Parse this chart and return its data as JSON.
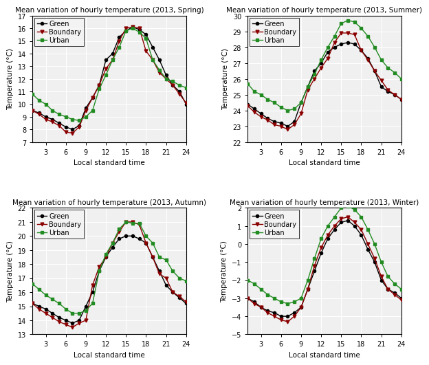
{
  "x": [
    1,
    2,
    3,
    4,
    5,
    6,
    7,
    8,
    9,
    10,
    11,
    12,
    13,
    14,
    15,
    16,
    17,
    18,
    19,
    20,
    21,
    22,
    23,
    24
  ],
  "spring": {
    "green": [
      9.5,
      9.3,
      9.0,
      8.8,
      8.5,
      8.2,
      8.0,
      8.3,
      9.7,
      10.5,
      11.5,
      13.5,
      14.0,
      15.3,
      15.8,
      16.1,
      15.9,
      15.5,
      14.5,
      13.5,
      12.3,
      11.5,
      11.0,
      10.0
    ],
    "boundary": [
      9.5,
      9.2,
      8.8,
      8.6,
      8.3,
      7.8,
      7.7,
      8.2,
      9.5,
      10.5,
      11.5,
      12.8,
      13.5,
      15.0,
      16.0,
      16.1,
      16.0,
      14.2,
      13.5,
      12.5,
      12.0,
      11.5,
      10.8,
      10.1
    ],
    "urban": [
      10.8,
      10.3,
      10.0,
      9.5,
      9.2,
      9.0,
      8.8,
      8.7,
      9.0,
      9.5,
      11.2,
      12.3,
      13.5,
      14.5,
      15.8,
      16.0,
      15.7,
      15.2,
      13.5,
      12.7,
      12.0,
      11.8,
      11.5,
      11.3
    ],
    "ylim": [
      7,
      17
    ],
    "yticks": [
      7,
      8,
      9,
      10,
      11,
      12,
      13,
      14,
      15,
      16,
      17
    ],
    "title": "Mean variation of hourly temperature (2013, Spring)"
  },
  "summer": {
    "green": [
      24.4,
      24.1,
      23.8,
      23.5,
      23.3,
      23.2,
      23.0,
      23.3,
      24.5,
      25.5,
      26.5,
      27.0,
      27.7,
      28.0,
      28.2,
      28.3,
      28.2,
      27.8,
      27.3,
      26.5,
      25.5,
      25.2,
      25.0,
      24.7
    ],
    "boundary": [
      24.3,
      23.9,
      23.6,
      23.4,
      23.1,
      23.0,
      22.8,
      23.1,
      23.8,
      25.3,
      26.0,
      26.7,
      27.3,
      28.3,
      28.9,
      28.9,
      28.8,
      27.8,
      27.2,
      26.5,
      25.9,
      25.3,
      25.0,
      24.7
    ],
    "urban": [
      25.7,
      25.2,
      25.0,
      24.7,
      24.5,
      24.2,
      24.0,
      24.1,
      24.5,
      25.5,
      26.3,
      27.2,
      28.0,
      28.7,
      29.5,
      29.7,
      29.6,
      29.2,
      28.7,
      28.0,
      27.2,
      26.7,
      26.4,
      26.0
    ],
    "ylim": [
      22,
      30
    ],
    "yticks": [
      22,
      23,
      24,
      25,
      26,
      27,
      28,
      29,
      30
    ],
    "title": "Mean variation of hourly temperature (2013, Summer)"
  },
  "autumn": {
    "green": [
      15.2,
      15.0,
      14.8,
      14.5,
      14.2,
      14.0,
      13.8,
      14.0,
      15.0,
      16.0,
      17.5,
      18.5,
      19.2,
      19.8,
      20.0,
      20.0,
      19.8,
      19.5,
      18.5,
      17.5,
      16.5,
      16.0,
      15.6,
      15.2
    ],
    "boundary": [
      15.2,
      14.8,
      14.5,
      14.2,
      13.9,
      13.7,
      13.5,
      13.8,
      14.0,
      16.5,
      17.8,
      18.5,
      19.5,
      20.3,
      21.0,
      21.0,
      20.8,
      19.5,
      18.5,
      17.3,
      17.0,
      16.0,
      15.7,
      15.3
    ],
    "urban": [
      16.6,
      16.2,
      15.8,
      15.5,
      15.2,
      14.8,
      14.5,
      14.5,
      14.7,
      15.2,
      17.5,
      18.7,
      19.5,
      20.5,
      21.0,
      20.9,
      20.9,
      20.0,
      19.5,
      18.5,
      18.3,
      17.5,
      17.0,
      16.8
    ],
    "ylim": [
      13,
      22
    ],
    "yticks": [
      13,
      14,
      15,
      16,
      17,
      18,
      19,
      20,
      21,
      22
    ],
    "title": "Mean variation of hourly temperature (2013, Autumn)"
  },
  "winter": {
    "green": [
      -3.0,
      -3.2,
      -3.5,
      -3.7,
      -3.8,
      -4.0,
      -4.0,
      -3.8,
      -3.5,
      -2.5,
      -1.5,
      -0.5,
      0.3,
      0.8,
      1.2,
      1.3,
      1.0,
      0.5,
      -0.3,
      -1.0,
      -2.0,
      -2.5,
      -2.7,
      -3.0
    ],
    "boundary": [
      -3.0,
      -3.3,
      -3.5,
      -3.8,
      -4.0,
      -4.2,
      -4.3,
      -4.0,
      -3.5,
      -2.5,
      -1.2,
      -0.2,
      0.5,
      1.0,
      1.4,
      1.5,
      1.2,
      0.8,
      0.0,
      -0.8,
      -1.8,
      -2.5,
      -2.8,
      -3.1
    ],
    "urban": [
      -2.0,
      -2.2,
      -2.5,
      -2.8,
      -3.0,
      -3.2,
      -3.3,
      -3.2,
      -3.0,
      -2.0,
      -0.8,
      0.3,
      1.0,
      1.5,
      2.0,
      2.1,
      1.9,
      1.5,
      0.8,
      0.0,
      -1.0,
      -1.8,
      -2.2,
      -2.5
    ],
    "ylim": [
      -5,
      2
    ],
    "yticks": [
      -5,
      -4,
      -3,
      -2,
      -1,
      0,
      1,
      2
    ],
    "title": "Mean variation of hourly temperature (2013, Winter)"
  },
  "xticks": [
    3,
    6,
    9,
    12,
    15,
    18,
    21,
    24
  ],
  "xlabel": "Local standard time",
  "ylabel": "Temperature (°C)",
  "green_color": "#000000",
  "boundary_color": "#8B0000",
  "urban_color": "#228B22",
  "legend_labels": [
    "Green",
    "Boundary",
    "Urban"
  ],
  "bg_color": "#f0f0f0"
}
